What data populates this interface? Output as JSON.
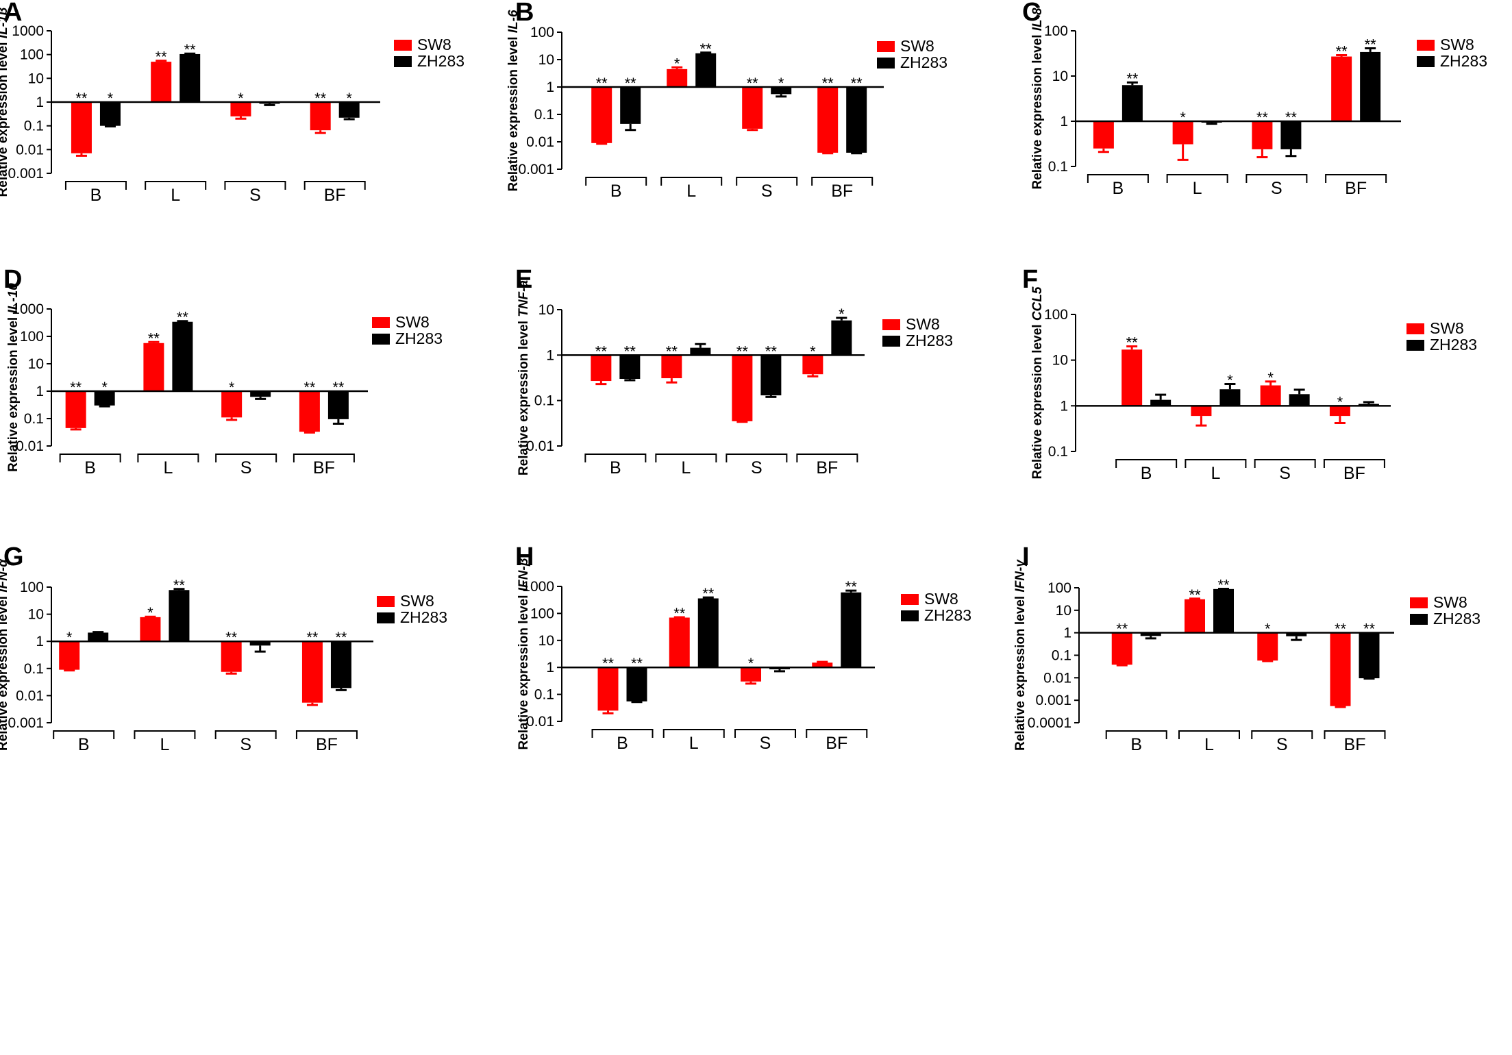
{
  "legend": {
    "sw8": "SW8",
    "zh283": "ZH283"
  },
  "colors": {
    "sw8": "#ff0000",
    "zh283": "#000000",
    "axis": "#000000"
  },
  "chart_data": [
    {
      "panel": "A",
      "type": "bar",
      "yscale": "log",
      "gene": "IL-1β",
      "ylabel_prefix": "Relative expression level ",
      "ylabel_gene": "IL-1β",
      "ylim": [
        0.001,
        1000
      ],
      "yticks": [
        0.001,
        0.01,
        0.1,
        1,
        10,
        100,
        1000
      ],
      "ytick_labels": [
        "0.001",
        "0.01",
        "0.1",
        "1",
        "10",
        "100",
        "1000"
      ],
      "categories": [
        "B",
        "L",
        "S",
        "BF"
      ],
      "series": [
        {
          "name": "SW8",
          "values": [
            0.007,
            50,
            0.25,
            0.065
          ],
          "errors": [
            0.0055,
            55,
            0.2,
            0.05
          ],
          "sig": [
            "**",
            "**",
            "*",
            "**"
          ]
        },
        {
          "name": "ZH283",
          "values": [
            0.1,
            105,
            0.85,
            0.22
          ],
          "errors": [
            0.095,
            110,
            0.75,
            0.19
          ],
          "sig": [
            "*",
            "**",
            "",
            "*"
          ]
        }
      ]
    },
    {
      "panel": "B",
      "type": "bar",
      "yscale": "log",
      "gene": "IL-6",
      "ylabel_prefix": "Relative expression level ",
      "ylabel_gene": "IL-6",
      "ylim": [
        0.001,
        100
      ],
      "yticks": [
        0.001,
        0.01,
        0.1,
        1,
        10,
        100
      ],
      "ytick_labels": [
        "0.001",
        "0.01",
        "0.1",
        "1",
        "10",
        "100"
      ],
      "categories": [
        "B",
        "L",
        "S",
        "BF"
      ],
      "series": [
        {
          "name": "SW8",
          "values": [
            0.009,
            4.5,
            0.03,
            0.004
          ],
          "errors": [
            0.0085,
            5.2,
            0.027,
            0.0038
          ],
          "sig": [
            "**",
            "*",
            "**",
            "**"
          ]
        },
        {
          "name": "ZH283",
          "values": [
            0.045,
            17,
            0.55,
            0.004
          ],
          "errors": [
            0.027,
            18,
            0.45,
            0.0038
          ],
          "sig": [
            "**",
            "**",
            "*",
            "**"
          ]
        }
      ]
    },
    {
      "panel": "C",
      "type": "bar",
      "yscale": "log",
      "gene": "IL-8",
      "ylabel_prefix": "Relative expression level ",
      "ylabel_gene": "IL-8",
      "ylim": [
        0.1,
        100
      ],
      "yticks": [
        0.1,
        1,
        10,
        100
      ],
      "ytick_labels": [
        "0.1",
        "1",
        "10",
        "100"
      ],
      "categories": [
        "B",
        "L",
        "S",
        "BF"
      ],
      "series": [
        {
          "name": "SW8",
          "values": [
            0.25,
            0.31,
            0.24,
            27
          ],
          "errors": [
            0.21,
            0.14,
            0.16,
            29
          ],
          "sig": [
            "",
            "*",
            "**",
            "**"
          ]
        },
        {
          "name": "ZH283",
          "values": [
            6.3,
            0.95,
            0.24,
            34
          ],
          "errors": [
            7.2,
            0.88,
            0.17,
            41
          ],
          "sig": [
            "**",
            "",
            "**",
            "**"
          ]
        }
      ]
    },
    {
      "panel": "D",
      "type": "bar",
      "yscale": "log",
      "gene": "IL-10",
      "ylabel_prefix": "Relative expression level ",
      "ylabel_gene": "IL-10",
      "ylim": [
        0.01,
        1000
      ],
      "yticks": [
        0.01,
        0.1,
        1,
        10,
        100,
        1000
      ],
      "ytick_labels": [
        "0.01",
        "0.1",
        "1",
        "10",
        "100",
        "1000"
      ],
      "categories": [
        "B",
        "L",
        "S",
        "BF"
      ],
      "series": [
        {
          "name": "SW8",
          "values": [
            0.045,
            57,
            0.11,
            0.033
          ],
          "errors": [
            0.04,
            62,
            0.09,
            0.031
          ],
          "sig": [
            "**",
            "**",
            "*",
            "**"
          ]
        },
        {
          "name": "ZH283",
          "values": [
            0.3,
            340,
            0.62,
            0.095
          ],
          "errors": [
            0.28,
            360,
            0.52,
            0.065
          ],
          "sig": [
            "*",
            "**",
            "",
            "**"
          ]
        }
      ]
    },
    {
      "panel": "E",
      "type": "bar",
      "yscale": "log",
      "gene": "TNF-a",
      "ylabel_prefix": "Relative expression level ",
      "ylabel_gene": "TNF-a",
      "ylim": [
        0.01,
        10
      ],
      "yticks": [
        0.01,
        0.1,
        1,
        10
      ],
      "ytick_labels": [
        "0.01",
        "0.1",
        "1",
        "10"
      ],
      "categories": [
        "B",
        "L",
        "S",
        "BF"
      ],
      "series": [
        {
          "name": "SW8",
          "values": [
            0.27,
            0.31,
            0.035,
            0.38
          ],
          "errors": [
            0.23,
            0.25,
            0.034,
            0.34
          ],
          "sig": [
            "**",
            "**",
            "**",
            "*"
          ]
        },
        {
          "name": "ZH283",
          "values": [
            0.3,
            1.45,
            0.13,
            5.8
          ],
          "errors": [
            0.28,
            1.75,
            0.12,
            6.6
          ],
          "sig": [
            "**",
            "",
            "**",
            "*"
          ]
        }
      ]
    },
    {
      "panel": "F",
      "type": "bar",
      "yscale": "log",
      "gene": "CCL5",
      "ylabel_prefix": "Relative expression level ",
      "ylabel_gene": "CCL5",
      "ylim": [
        0.1,
        100
      ],
      "yticks": [
        0.1,
        1,
        10,
        100
      ],
      "ytick_labels": [
        "0.1",
        "1",
        "10",
        "100"
      ],
      "categories": [
        "B",
        "L",
        "S",
        "BF"
      ],
      "series": [
        {
          "name": "SW8",
          "values": [
            17,
            0.6,
            2.8,
            0.6
          ],
          "errors": [
            20,
            0.37,
            3.4,
            0.42
          ],
          "sig": [
            "**",
            "",
            "*",
            "*"
          ]
        },
        {
          "name": "ZH283",
          "values": [
            1.35,
            2.3,
            1.8,
            1.1
          ],
          "errors": [
            1.75,
            3.0,
            2.25,
            1.2
          ],
          "sig": [
            "",
            "*",
            "",
            ""
          ]
        }
      ]
    },
    {
      "panel": "G",
      "type": "bar",
      "yscale": "log",
      "gene": "IFN-α",
      "ylabel_prefix": "Relative expression level ",
      "ylabel_gene": "IFN-α",
      "ylim": [
        0.001,
        100
      ],
      "yticks": [
        0.001,
        0.01,
        0.1,
        1,
        10,
        100
      ],
      "ytick_labels": [
        "0.001",
        "0.01",
        "0.1",
        "1",
        "10",
        "100"
      ],
      "categories": [
        "B",
        "L",
        "S",
        "BF"
      ],
      "series": [
        {
          "name": "SW8",
          "values": [
            0.09,
            7.8,
            0.075,
            0.0055
          ],
          "errors": [
            0.085,
            8.1,
            0.065,
            0.0045
          ],
          "sig": [
            "*",
            "*",
            "**",
            "**"
          ]
        },
        {
          "name": "ZH283",
          "values": [
            2.1,
            78,
            0.7,
            0.019
          ],
          "errors": [
            2.2,
            85,
            0.42,
            0.016
          ],
          "sig": [
            "",
            "**",
            "",
            "**"
          ]
        }
      ]
    },
    {
      "panel": "H",
      "type": "bar",
      "yscale": "log",
      "gene": "IFN-β",
      "ylabel_prefix": "Relative expression level ",
      "ylabel_gene": "IFN-β",
      "ylim": [
        0.01,
        1000
      ],
      "yticks": [
        0.01,
        0.1,
        1,
        10,
        100,
        1000
      ],
      "ytick_labels": [
        "0.01",
        "0.1",
        "1",
        "10",
        "100",
        "1000"
      ],
      "categories": [
        "B",
        "L",
        "S",
        "BF"
      ],
      "series": [
        {
          "name": "SW8",
          "values": [
            0.025,
            70,
            0.3,
            1.5
          ],
          "errors": [
            0.02,
            72,
            0.25,
            1.6
          ],
          "sig": [
            "**",
            "**",
            "*",
            ""
          ]
        },
        {
          "name": "ZH283",
          "values": [
            0.055,
            360,
            0.85,
            600
          ],
          "errors": [
            0.052,
            390,
            0.72,
            700
          ],
          "sig": [
            "**",
            "**",
            "",
            "**"
          ]
        }
      ]
    },
    {
      "panel": "I",
      "type": "bar",
      "yscale": "log",
      "gene": "IFN-γ",
      "ylabel_prefix": "Relative expression level ",
      "ylabel_gene": "IFN-γ",
      "ylim": [
        0.0001,
        100
      ],
      "yticks": [
        0.0001,
        0.001,
        0.01,
        0.1,
        1,
        10,
        100
      ],
      "ytick_labels": [
        "0.0001",
        "0.001",
        "0.01",
        "0.1",
        "1",
        "10",
        "100"
      ],
      "categories": [
        "B",
        "L",
        "S",
        "BF"
      ],
      "series": [
        {
          "name": "SW8",
          "values": [
            0.038,
            31,
            0.058,
            0.00055
          ],
          "errors": [
            0.036,
            33,
            0.055,
            0.0005
          ],
          "sig": [
            "**",
            "**",
            "*",
            "**"
          ]
        },
        {
          "name": "ZH283",
          "values": [
            0.72,
            88,
            0.7,
            0.0095
          ],
          "errors": [
            0.56,
            90,
            0.48,
            0.0092
          ],
          "sig": [
            "",
            "**",
            "",
            "**"
          ]
        }
      ]
    }
  ]
}
